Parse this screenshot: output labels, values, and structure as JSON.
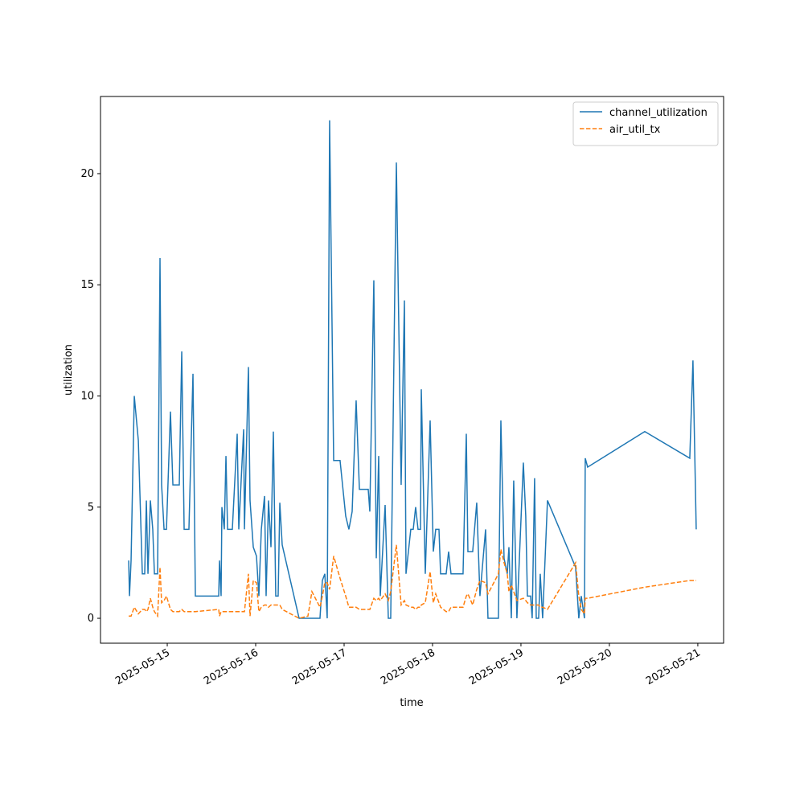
{
  "chart_data": {
    "type": "line",
    "x_label": "time",
    "y_label": "utilization",
    "x": [
      "2025-05-14T13:32",
      "2025-05-14T13:45",
      "2025-05-14T14:11",
      "2025-05-14T15:03",
      "2025-05-14T16:09",
      "2025-05-14T17:14",
      "2025-05-14T17:53",
      "2025-05-14T18:20",
      "2025-05-14T18:46",
      "2025-05-14T19:25",
      "2025-05-14T20:04",
      "2025-05-14T20:31",
      "2025-05-14T21:23",
      "2025-05-14T22:02",
      "2025-05-14T22:28",
      "2025-05-14T23:08",
      "2025-05-14T23:47",
      "2025-05-15T00:52",
      "2025-05-15T01:32",
      "2025-05-15T03:16",
      "2025-05-15T03:56",
      "2025-05-15T04:35",
      "2025-05-15T05:53",
      "2025-05-15T06:59",
      "2025-05-15T07:38",
      "2025-05-15T13:58",
      "2025-05-15T14:11",
      "2025-05-15T14:37",
      "2025-05-15T14:50",
      "2025-05-15T15:29",
      "2025-05-15T15:56",
      "2025-05-15T16:22",
      "2025-05-15T17:40",
      "2025-05-15T18:59",
      "2025-05-15T19:25",
      "2025-05-15T20:44",
      "2025-05-15T20:57",
      "2025-05-15T22:02",
      "2025-05-15T22:28",
      "2025-05-15T23:21",
      "2025-05-16T00:13",
      "2025-05-16T00:52",
      "2025-05-16T01:32",
      "2025-05-16T02:24",
      "2025-05-16T02:50",
      "2025-05-16T03:29",
      "2025-05-16T04:09",
      "2025-05-16T04:48",
      "2025-05-16T05:27",
      "2025-05-16T06:06",
      "2025-05-16T06:33",
      "2025-05-16T07:12",
      "2025-05-16T11:47",
      "2025-05-16T14:11",
      "2025-05-16T15:16",
      "2025-05-16T17:27",
      "2025-05-16T18:06",
      "2025-05-16T18:46",
      "2025-05-16T19:25",
      "2025-05-16T20:04",
      "2025-05-16T21:10",
      "2025-05-16T22:54",
      "2025-05-17T00:26",
      "2025-05-17T01:18",
      "2025-05-17T02:11",
      "2025-05-17T03:16",
      "2025-05-17T04:09",
      "2025-05-17T06:33",
      "2025-05-17T06:59",
      "2025-05-17T08:04",
      "2025-05-17T08:44",
      "2025-05-17T09:23",
      "2025-05-17T09:49",
      "2025-05-17T11:08",
      "2025-05-17T12:00",
      "2025-05-17T12:39",
      "2025-05-17T14:11",
      "2025-05-17T15:29",
      "2025-05-17T16:22",
      "2025-05-17T16:48",
      "2025-05-17T18:06",
      "2025-05-17T18:46",
      "2025-05-17T19:25",
      "2025-05-17T20:04",
      "2025-05-17T20:44",
      "2025-05-17T20:57",
      "2025-05-17T22:02",
      "2025-05-17T23:21",
      "2025-05-18T00:13",
      "2025-05-18T00:52",
      "2025-05-18T01:45",
      "2025-05-18T02:11",
      "2025-05-18T03:42",
      "2025-05-18T04:22",
      "2025-05-18T05:01",
      "2025-05-18T08:17",
      "2025-05-18T09:10",
      "2025-05-18T09:36",
      "2025-05-18T10:54",
      "2025-05-18T12:00",
      "2025-05-18T12:52",
      "2025-05-18T14:24",
      "2025-05-18T15:03",
      "2025-05-18T17:53",
      "2025-05-18T18:33",
      "2025-05-18T19:25",
      "2025-05-18T20:17",
      "2025-05-18T20:44",
      "2025-05-18T21:23",
      "2025-05-18T22:02",
      "2025-05-18T22:54",
      "2025-05-19T00:39",
      "2025-05-19T01:18",
      "2025-05-19T01:45",
      "2025-05-19T02:37",
      "2025-05-19T03:03",
      "2025-05-19T03:42",
      "2025-05-19T04:09",
      "2025-05-19T04:48",
      "2025-05-19T05:14",
      "2025-05-19T05:53",
      "2025-05-19T07:12",
      "2025-05-19T14:50",
      "2025-05-19T15:42",
      "2025-05-19T16:22",
      "2025-05-19T17:14",
      "2025-05-19T17:27",
      "2025-05-19T18:06",
      "2025-05-20T09:36",
      "2025-05-20T21:49",
      "2025-05-20T22:41",
      "2025-05-20T23:34"
    ],
    "series": [
      {
        "name": "channel_utilization",
        "color": "#1f77b4",
        "linestyle": "solid",
        "values": [
          2.6,
          1.0,
          2.6,
          10.0,
          8.0,
          2.0,
          2.0,
          5.3,
          2.0,
          5.3,
          4.0,
          2.0,
          2.0,
          16.2,
          6.0,
          4.0,
          4.0,
          9.3,
          6.0,
          6.0,
          12.0,
          4.0,
          4.0,
          11.0,
          1.0,
          1.0,
          2.6,
          1.0,
          5.0,
          4.0,
          7.3,
          4.0,
          4.0,
          8.3,
          4.0,
          8.5,
          4.0,
          11.3,
          5.3,
          3.2,
          2.8,
          1.0,
          4.0,
          5.5,
          1.0,
          5.3,
          3.2,
          8.4,
          1.0,
          1.0,
          5.2,
          3.3,
          0.0,
          0.0,
          0.0,
          0.0,
          1.7,
          2.0,
          0.0,
          22.4,
          7.1,
          7.1,
          4.6,
          4.0,
          4.8,
          9.8,
          5.8,
          5.8,
          4.8,
          15.2,
          2.7,
          7.3,
          1.0,
          5.1,
          0.0,
          0.0,
          20.5,
          6.0,
          14.3,
          2.0,
          4.0,
          4.0,
          5.0,
          4.0,
          4.0,
          10.3,
          2.0,
          8.9,
          3.0,
          4.0,
          4.0,
          2.0,
          2.0,
          3.0,
          2.0,
          2.0,
          8.3,
          3.0,
          3.0,
          5.2,
          1.0,
          4.0,
          0.0,
          0.0,
          8.9,
          2.7,
          2.0,
          3.2,
          0.0,
          6.2,
          0.0,
          7.0,
          4.6,
          1.0,
          1.0,
          0.0,
          6.3,
          0.0,
          0.0,
          2.0,
          0.0,
          5.3,
          2.3,
          0.0,
          1.0,
          0.0,
          7.2,
          6.8,
          8.4,
          7.2,
          11.6,
          4.0
        ]
      },
      {
        "name": "air_util_tx",
        "color": "#ff7f0e",
        "linestyle": "dashed",
        "values": [
          0.1,
          0.1,
          0.1,
          0.5,
          0.2,
          0.4,
          0.4,
          0.3,
          0.4,
          0.9,
          0.5,
          0.3,
          0.1,
          2.3,
          0.7,
          0.8,
          1.0,
          0.4,
          0.3,
          0.3,
          0.4,
          0.3,
          0.3,
          0.3,
          0.3,
          0.4,
          0.1,
          0.3,
          0.3,
          0.3,
          0.3,
          0.3,
          0.3,
          0.3,
          0.3,
          0.3,
          0.3,
          2.0,
          0.1,
          1.7,
          1.6,
          0.3,
          0.5,
          0.6,
          0.6,
          0.5,
          0.6,
          0.6,
          0.6,
          0.6,
          0.6,
          0.4,
          0.0,
          0.1,
          1.2,
          0.5,
          1.0,
          1.6,
          1.6,
          1.3,
          2.8,
          1.8,
          1.0,
          0.5,
          0.5,
          0.5,
          0.4,
          0.4,
          0.4,
          0.9,
          0.8,
          0.9,
          0.8,
          1.1,
          0.8,
          1.2,
          3.3,
          0.6,
          0.8,
          0.6,
          0.5,
          0.5,
          0.4,
          0.5,
          0.5,
          0.6,
          0.7,
          2.1,
          0.7,
          1.1,
          0.7,
          0.5,
          0.3,
          0.3,
          0.5,
          0.5,
          1.0,
          1.1,
          0.6,
          1.3,
          1.7,
          1.6,
          1.1,
          2.0,
          3.1,
          2.5,
          2.0,
          1.2,
          1.5,
          1.2,
          0.8,
          0.9,
          0.8,
          0.7,
          0.6,
          0.6,
          0.6,
          0.6,
          0.6,
          0.5,
          0.5,
          0.4,
          2.5,
          1.0,
          0.4,
          0.2,
          0.9,
          0.9,
          1.4,
          1.7,
          1.7,
          1.7
        ]
      }
    ],
    "xlim": [
      "2025-05-14T05:53",
      "2025-05-21T07:00"
    ],
    "xticks": [
      "2025-05-15",
      "2025-05-16",
      "2025-05-17",
      "2025-05-18",
      "2025-05-19",
      "2025-05-20",
      "2025-05-21"
    ],
    "ylim": [
      -1.12,
      23.47
    ],
    "yticks": [
      0,
      5,
      10,
      15,
      20
    ],
    "legend": "upper right",
    "grid": false
  }
}
